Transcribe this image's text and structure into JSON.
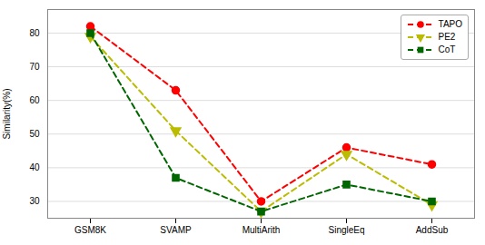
{
  "chart_data": {
    "type": "line",
    "categories": [
      "GSM8K",
      "SVAMP",
      "MultiArith",
      "SingleEq",
      "AddSub"
    ],
    "series": [
      {
        "name": "TAPO",
        "color": "#ff0000",
        "marker": "circle",
        "values": [
          82,
          63,
          30,
          46,
          41
        ]
      },
      {
        "name": "PE2",
        "color": "#bbbb00",
        "marker": "triangle-down",
        "values": [
          79,
          51,
          27,
          44,
          29
        ]
      },
      {
        "name": "CoT",
        "color": "#006600",
        "marker": "square",
        "values": [
          80,
          37,
          27,
          35,
          30
        ]
      }
    ],
    "ylabel": "Similarity(%)",
    "ylim": [
      25,
      87
    ],
    "yticks": [
      30,
      40,
      50,
      60,
      70,
      80
    ],
    "grid": true,
    "legend": "upper right",
    "line_style": "dashed"
  }
}
